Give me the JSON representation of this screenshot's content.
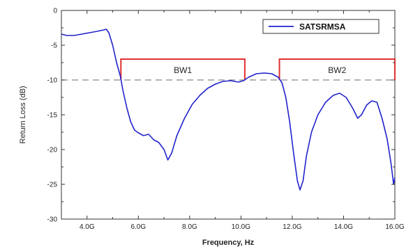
{
  "chart_data": {
    "type": "line",
    "xlabel": "Frequency, Hz",
    "ylabel": "Return Loss (dB)",
    "xlim": [
      3,
      16
    ],
    "ylim": [
      -30,
      0
    ],
    "x_ticks": [
      {
        "value": 4,
        "label": "4.0G"
      },
      {
        "value": 6,
        "label": "6.0G"
      },
      {
        "value": 8,
        "label": "8.0G"
      },
      {
        "value": 10,
        "label": "10.0G"
      },
      {
        "value": 12,
        "label": "12.0G"
      },
      {
        "value": 14,
        "label": "14.0G"
      },
      {
        "value": 16,
        "label": "16.0G"
      }
    ],
    "y_ticks": [
      {
        "value": 0,
        "label": "0"
      },
      {
        "value": -5,
        "label": "-5"
      },
      {
        "value": -10,
        "label": "-10"
      },
      {
        "value": -15,
        "label": "-15"
      },
      {
        "value": -20,
        "label": "-20"
      },
      {
        "value": -25,
        "label": "-25"
      },
      {
        "value": -30,
        "label": "-30"
      }
    ],
    "legend_position": "top-right",
    "grid": false,
    "series": [
      {
        "name": "SATSRMSA",
        "color": "#2222cc",
        "points": [
          [
            3.0,
            -3.4
          ],
          [
            3.2,
            -3.6
          ],
          [
            3.5,
            -3.6
          ],
          [
            3.8,
            -3.4
          ],
          [
            4.1,
            -3.2
          ],
          [
            4.4,
            -3.0
          ],
          [
            4.65,
            -2.8
          ],
          [
            4.75,
            -2.7
          ],
          [
            4.85,
            -3.2
          ],
          [
            5.0,
            -5.0
          ],
          [
            5.15,
            -7.5
          ],
          [
            5.3,
            -9.5
          ],
          [
            5.4,
            -11.5
          ],
          [
            5.55,
            -14.0
          ],
          [
            5.7,
            -16.0
          ],
          [
            5.85,
            -17.2
          ],
          [
            6.0,
            -17.6
          ],
          [
            6.2,
            -18.0
          ],
          [
            6.4,
            -17.8
          ],
          [
            6.6,
            -18.6
          ],
          [
            6.8,
            -19.0
          ],
          [
            7.0,
            -20.0
          ],
          [
            7.15,
            -21.5
          ],
          [
            7.3,
            -20.5
          ],
          [
            7.5,
            -18.0
          ],
          [
            7.8,
            -15.5
          ],
          [
            8.1,
            -13.5
          ],
          [
            8.4,
            -12.2
          ],
          [
            8.7,
            -11.2
          ],
          [
            9.0,
            -10.6
          ],
          [
            9.3,
            -10.2
          ],
          [
            9.6,
            -10.1
          ],
          [
            9.9,
            -10.3
          ],
          [
            10.1,
            -10.1
          ],
          [
            10.3,
            -9.6
          ],
          [
            10.6,
            -9.1
          ],
          [
            10.9,
            -9.0
          ],
          [
            11.2,
            -9.1
          ],
          [
            11.45,
            -9.6
          ],
          [
            11.6,
            -10.4
          ],
          [
            11.75,
            -12.5
          ],
          [
            11.9,
            -16.0
          ],
          [
            12.05,
            -20.5
          ],
          [
            12.2,
            -24.5
          ],
          [
            12.3,
            -25.8
          ],
          [
            12.42,
            -24.5
          ],
          [
            12.55,
            -21.0
          ],
          [
            12.75,
            -17.5
          ],
          [
            13.0,
            -15.0
          ],
          [
            13.3,
            -13.2
          ],
          [
            13.6,
            -12.2
          ],
          [
            13.85,
            -11.9
          ],
          [
            14.1,
            -12.5
          ],
          [
            14.35,
            -14.0
          ],
          [
            14.55,
            -15.5
          ],
          [
            14.7,
            -15.0
          ],
          [
            14.9,
            -13.6
          ],
          [
            15.1,
            -13.0
          ],
          [
            15.3,
            -13.2
          ],
          [
            15.5,
            -15.5
          ],
          [
            15.7,
            -18.5
          ],
          [
            15.85,
            -22.0
          ],
          [
            15.95,
            -25.0
          ],
          [
            16.0,
            -24.0
          ]
        ]
      }
    ],
    "reference_line": {
      "y": -10,
      "style": "dashed",
      "color": "#888888"
    },
    "bands": [
      {
        "label": "BW1",
        "x_start": 5.32,
        "x_end": 10.15,
        "y": -7,
        "color": "#e03030"
      },
      {
        "label": "BW2",
        "x_start": 11.5,
        "x_end": 16.0,
        "y": -7,
        "color": "#e03030"
      }
    ]
  }
}
